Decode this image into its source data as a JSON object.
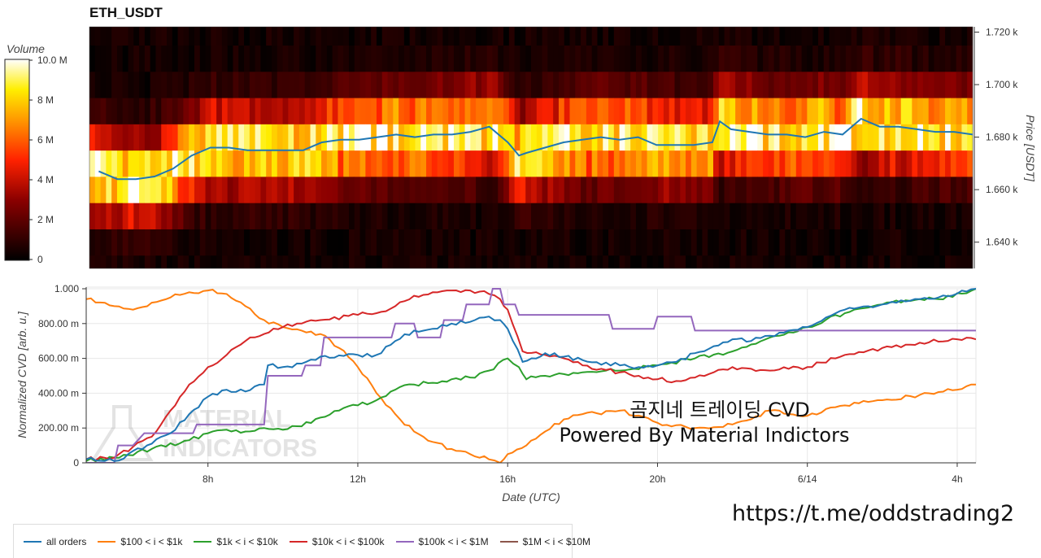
{
  "title": "ETH_USDT",
  "watermark": "https://t.me/oddstrading2",
  "overlay": {
    "line1": "곰지네 트레이딩 CVD",
    "line2": "Powered By Material Indictors"
  },
  "logo_text": {
    "line1": "MATERIAL",
    "line2": "INDICATORS"
  },
  "colors": {
    "all_orders": "#1f77b4",
    "tier_100_1k": "#ff7f0e",
    "tier_1k_10k": "#2ca02c",
    "tier_10k_100k": "#d62728",
    "tier_100k_1M": "#9467bd",
    "tier_1M_10M": "#8c564b"
  },
  "chart_data": [
    {
      "type": "heatmap",
      "title": "ETH_USDT",
      "colorbar": {
        "title": "Volume",
        "ticks": [
          "0",
          "2 M",
          "4 M",
          "6 M",
          "8 M",
          "10.0 M"
        ],
        "range": [
          0,
          10000000
        ]
      },
      "ylabel": "Price [USDT]",
      "y_ticks": [
        "1.640 k",
        "1.660 k",
        "1.680 k",
        "1.700 k",
        "1.720 k"
      ],
      "ylim": [
        1630,
        1722
      ],
      "price_bands": [
        1630,
        1635,
        1645,
        1655,
        1665,
        1675,
        1685,
        1695,
        1705,
        1715,
        1722
      ],
      "price_line": {
        "name": "price",
        "x_hours": [
          5.0,
          5.5,
          6.0,
          6.5,
          7.0,
          7.5,
          8.0,
          8.5,
          9.0,
          9.5,
          10.0,
          10.5,
          11.0,
          11.5,
          12.0,
          12.5,
          13.0,
          13.5,
          14.0,
          14.5,
          15.0,
          15.5,
          16.0,
          16.3,
          16.5,
          17.0,
          17.5,
          18.0,
          18.5,
          19.0,
          19.5,
          20.0,
          20.5,
          21.0,
          21.5,
          21.7,
          22.0,
          22.5,
          23.0,
          23.5,
          24.0,
          24.5,
          25.0,
          25.5,
          26.0,
          26.5,
          27.0,
          27.5,
          28.0,
          28.5
        ],
        "values": [
          1667,
          1664,
          1664,
          1665,
          1668,
          1673,
          1676,
          1676,
          1675,
          1675,
          1675,
          1675,
          1678,
          1679,
          1679,
          1680,
          1681,
          1680,
          1681,
          1681,
          1682,
          1684,
          1678,
          1673,
          1674,
          1676,
          1678,
          1679,
          1680,
          1679,
          1680,
          1677,
          1677,
          1677,
          1678,
          1686,
          1683,
          1682,
          1681,
          1681,
          1680,
          1682,
          1681,
          1687,
          1684,
          1684,
          1683,
          1682,
          1682,
          1681
        ]
      }
    },
    {
      "type": "line",
      "xlabel": "Date (UTC)",
      "ylabel": "Normalized CVD [arb. u.]",
      "x_ticks": [
        "8h",
        "12h",
        "16h",
        "20h",
        "6/14",
        "4h"
      ],
      "x_tick_hours": [
        8,
        12,
        16,
        20,
        24,
        28
      ],
      "xlim": [
        4.75,
        28.5
      ],
      "y_ticks": [
        "0",
        "200.00 m",
        "400.00 m",
        "600.00 m",
        "800.00 m",
        "1.000"
      ],
      "ylim": [
        0,
        1
      ],
      "grid": true,
      "legend_position": "bottom",
      "series": [
        {
          "name": "all orders",
          "x": [
            4.75,
            5.5,
            6.5,
            7.0,
            7.5,
            8.0,
            8.5,
            9.0,
            9.5,
            9.6,
            10.0,
            10.5,
            11.0,
            12.0,
            12.5,
            13.0,
            13.5,
            14.0,
            14.5,
            15.0,
            15.5,
            15.8,
            16.0,
            16.4,
            17.0,
            17.5,
            18.0,
            19.0,
            19.5,
            20.0,
            20.5,
            21.0,
            21.5,
            22.0,
            22.5,
            23.0,
            23.5,
            24.0,
            25.0,
            26.0,
            27.0,
            27.5,
            28.5
          ],
          "y": [
            0.02,
            0.01,
            0.11,
            0.17,
            0.28,
            0.38,
            0.42,
            0.41,
            0.45,
            0.56,
            0.55,
            0.57,
            0.61,
            0.62,
            0.62,
            0.7,
            0.76,
            0.77,
            0.8,
            0.81,
            0.84,
            0.82,
            0.77,
            0.58,
            0.63,
            0.61,
            0.59,
            0.56,
            0.55,
            0.56,
            0.58,
            0.63,
            0.67,
            0.71,
            0.7,
            0.73,
            0.76,
            0.78,
            0.88,
            0.91,
            0.94,
            0.95,
            1.0
          ]
        },
        {
          "name": "$100 < i < $1k",
          "x": [
            4.75,
            5.5,
            6.0,
            6.5,
            7.0,
            7.5,
            8.0,
            8.5,
            9.0,
            9.5,
            10.0,
            10.5,
            11.0,
            11.5,
            12.0,
            12.5,
            13.0,
            13.5,
            14.0,
            14.5,
            15.0,
            15.5,
            15.8,
            16.0,
            16.5,
            17.0,
            17.5,
            18.0,
            19.0,
            20.0,
            21.0,
            22.0,
            22.5,
            23.0,
            23.5,
            24.0,
            25.0,
            26.0,
            27.0,
            28.0,
            28.5
          ],
          "y": [
            0.94,
            0.9,
            0.88,
            0.92,
            0.95,
            0.98,
            0.99,
            0.97,
            0.9,
            0.82,
            0.78,
            0.76,
            0.74,
            0.66,
            0.55,
            0.4,
            0.28,
            0.18,
            0.12,
            0.08,
            0.05,
            0.02,
            0.0,
            0.05,
            0.1,
            0.18,
            0.25,
            0.28,
            0.3,
            0.23,
            0.2,
            0.22,
            0.25,
            0.3,
            0.28,
            0.27,
            0.33,
            0.36,
            0.39,
            0.42,
            0.45
          ]
        },
        {
          "name": "$1k < i < $10k",
          "x": [
            4.75,
            5.5,
            6.5,
            7.5,
            8.0,
            8.5,
            9.0,
            9.5,
            10.0,
            10.5,
            11.0,
            11.5,
            12.0,
            12.5,
            13.0,
            13.5,
            14.0,
            14.5,
            15.0,
            15.5,
            16.0,
            16.3,
            16.5,
            17.0,
            17.5,
            18.0,
            19.0,
            20.0,
            21.0,
            22.0,
            22.5,
            23.0,
            23.5,
            24.0,
            25.0,
            26.0,
            27.0,
            27.5,
            28.5
          ],
          "y": [
            0.01,
            0.03,
            0.08,
            0.13,
            0.17,
            0.19,
            0.18,
            0.2,
            0.19,
            0.21,
            0.26,
            0.3,
            0.33,
            0.36,
            0.42,
            0.45,
            0.46,
            0.48,
            0.49,
            0.53,
            0.6,
            0.55,
            0.48,
            0.5,
            0.51,
            0.52,
            0.53,
            0.56,
            0.6,
            0.64,
            0.68,
            0.72,
            0.75,
            0.78,
            0.86,
            0.91,
            0.94,
            0.94,
            1.0
          ]
        },
        {
          "name": "$10k < i < $100k",
          "x": [
            4.75,
            5.5,
            6.5,
            7.0,
            7.5,
            8.0,
            8.5,
            9.0,
            9.5,
            10.0,
            10.5,
            11.0,
            12.0,
            12.5,
            13.0,
            13.5,
            14.0,
            14.5,
            15.0,
            15.5,
            15.8,
            16.0,
            16.4,
            17.0,
            17.5,
            18.0,
            18.5,
            19.0,
            19.5,
            20.0,
            20.5,
            21.0,
            21.5,
            22.0,
            22.5,
            23.0,
            23.5,
            24.0,
            25.0,
            26.0,
            27.0,
            28.0,
            28.5
          ],
          "y": [
            0.02,
            0.03,
            0.15,
            0.3,
            0.45,
            0.55,
            0.62,
            0.7,
            0.74,
            0.78,
            0.8,
            0.82,
            0.85,
            0.86,
            0.9,
            0.96,
            0.98,
            0.99,
            0.99,
            0.97,
            0.94,
            0.88,
            0.64,
            0.62,
            0.6,
            0.56,
            0.54,
            0.52,
            0.5,
            0.48,
            0.47,
            0.49,
            0.52,
            0.55,
            0.54,
            0.53,
            0.54,
            0.55,
            0.62,
            0.66,
            0.69,
            0.71,
            0.71
          ]
        },
        {
          "name": "$100k < i < $1M",
          "x": [
            4.75,
            5.5,
            5.6,
            6.0,
            6.3,
            7.6,
            7.7,
            8.5,
            8.6,
            9.5,
            9.6,
            10.0,
            10.5,
            10.6,
            11.0,
            11.1,
            12.0,
            12.9,
            13.0,
            13.5,
            13.6,
            14.2,
            14.3,
            14.8,
            14.9,
            15.5,
            15.6,
            15.8,
            15.9,
            16.2,
            16.3,
            18.0,
            18.7,
            18.8,
            19.9,
            20.0,
            20.9,
            21.0,
            23.4,
            24.0,
            28.5
          ],
          "y": [
            0.0,
            0.0,
            0.1,
            0.1,
            0.17,
            0.17,
            0.22,
            0.22,
            0.22,
            0.22,
            0.5,
            0.5,
            0.5,
            0.56,
            0.56,
            0.72,
            0.72,
            0.72,
            0.8,
            0.8,
            0.72,
            0.72,
            0.82,
            0.82,
            0.91,
            0.91,
            1.0,
            1.0,
            0.91,
            0.91,
            0.85,
            0.85,
            0.85,
            0.77,
            0.77,
            0.84,
            0.84,
            0.76,
            0.76,
            0.76,
            0.76
          ]
        },
        {
          "name": "$1M < i < $10M",
          "x": [],
          "y": []
        }
      ]
    }
  ]
}
